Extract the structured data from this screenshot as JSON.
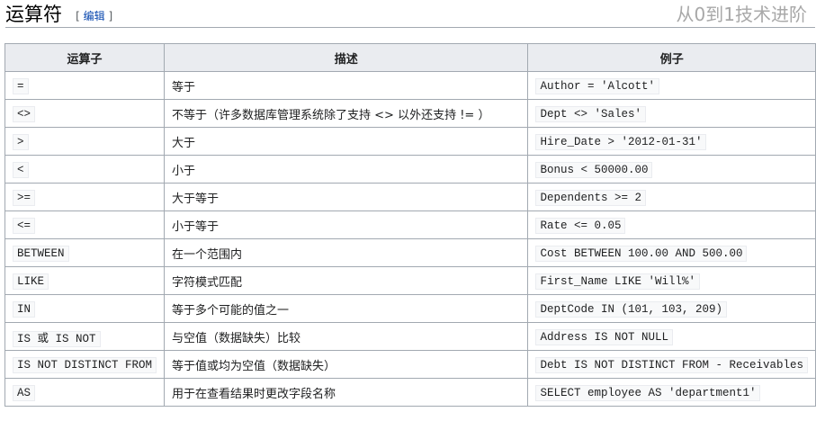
{
  "heading": {
    "title": "运算符",
    "edit_open": "[",
    "edit_label": "编辑",
    "edit_close": "]"
  },
  "table": {
    "headers": [
      "运算子",
      "描述",
      "例子"
    ],
    "rows": [
      {
        "op": "=",
        "desc": "等于",
        "ex": "Author = 'Alcott'"
      },
      {
        "op": "<>",
        "desc": "不等于（许多数据库管理系统除了支持 <> 以外还支持 != ）",
        "ex": "Dept <> 'Sales'"
      },
      {
        "op": ">",
        "desc": "大于",
        "ex": "Hire_Date > '2012-01-31'"
      },
      {
        "op": "<",
        "desc": "小于",
        "ex": "Bonus < 50000.00"
      },
      {
        "op": ">=",
        "desc": "大于等于",
        "ex": "Dependents >= 2"
      },
      {
        "op": "<=",
        "desc": "小于等于",
        "ex": "Rate <= 0.05"
      },
      {
        "op": "BETWEEN",
        "desc": "在一个范围内",
        "ex": "Cost BETWEEN 100.00 AND 500.00"
      },
      {
        "op": "LIKE",
        "desc": "字符模式匹配",
        "ex": "First_Name LIKE 'Will%'"
      },
      {
        "op": "IN",
        "desc": "等于多个可能的值之一",
        "ex": "DeptCode IN (101, 103, 209)"
      },
      {
        "op": "IS 或 IS NOT",
        "desc": "与空值（数据缺失）比较",
        "ex": "Address IS NOT NULL"
      },
      {
        "op": "IS NOT DISTINCT FROM",
        "desc": "等于值或均为空值（数据缺失）",
        "ex": "Debt IS NOT DISTINCT FROM - Receivables"
      },
      {
        "op": "AS",
        "desc": "用于在查看结果时更改字段名称",
        "ex": "SELECT employee AS 'department1'"
      }
    ]
  },
  "watermark": "从0到1技术进阶"
}
